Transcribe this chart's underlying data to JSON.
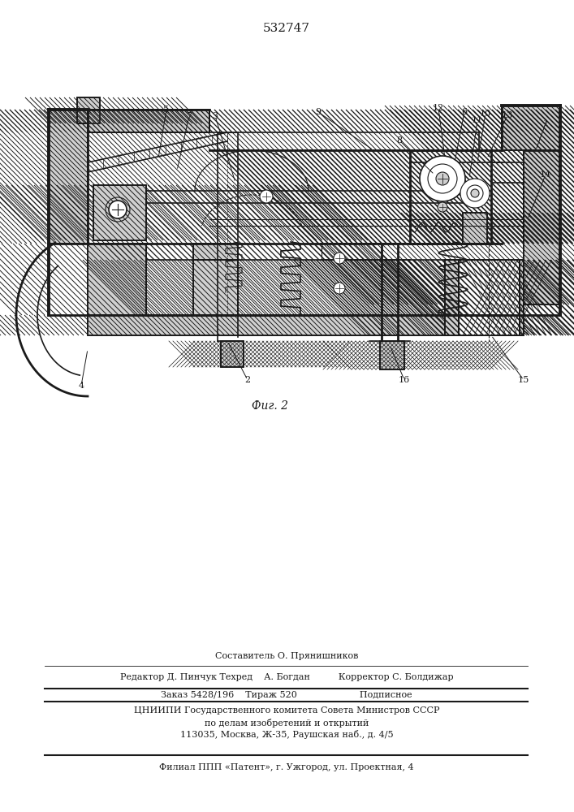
{
  "patent_number": "532747",
  "fig_label": "Фиг. 2",
  "background_color": "#ffffff",
  "line_color": "#1a1a1a",
  "footer": {
    "composer": "Составитель О. Прянишников",
    "editor_line": "Редактор Д. Пинчук Техред    А. Богдан          Корректор С. Болдижар",
    "order_line": "Заказ 5428/196    Тираж 520                      Подписное",
    "org_line1": "ЦНИИПИ Государственного комитета Совета Министров СССР",
    "org_line2": "по делам изобретений и открытий",
    "address_line": "113035, Москва, Ж-35, Раушская наб., д. 4/5",
    "branch_line": "Филиал ППП «Патент», г. Ужгород, ул. Проектная, 4"
  }
}
